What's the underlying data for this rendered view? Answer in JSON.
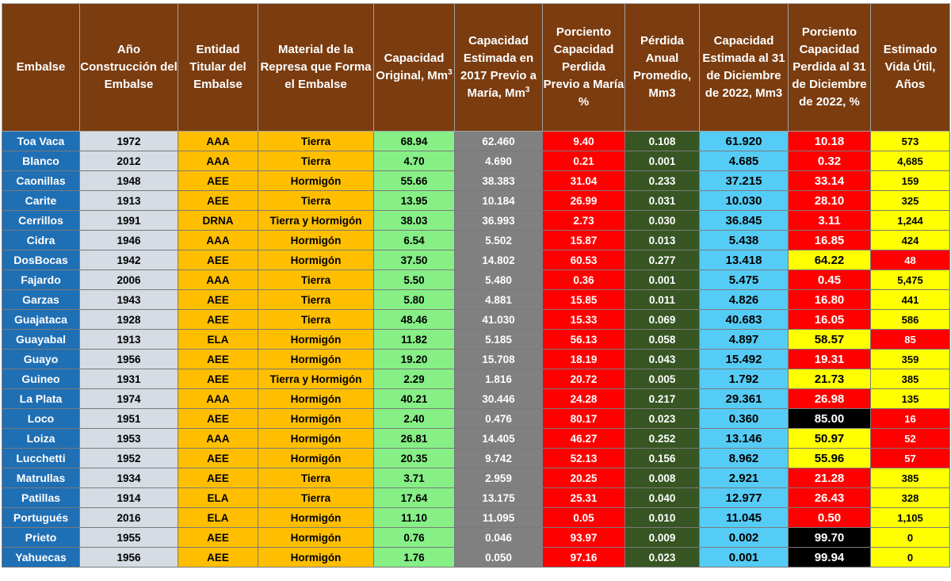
{
  "headers": {
    "embalse": "Embalse",
    "ano": "Año Construcción del Embalse",
    "entidad": "Entidad Titular del Embalse",
    "material": "Material de la Represa que Forma el Embalse",
    "cap_original": "Capacidad Original, Mm",
    "cap_estimada_2017": "Capacidad Estimada en 2017 Previo a María, Mm",
    "pct_perdida_maria": "Porciento Capacidad Perdida Previo a María %",
    "perdida_anual": "Pérdida Anual Promedio, Mm3",
    "cap_estimada_2022": "Capacidad Estimada al 31 de Diciembre de 2022, Mm3",
    "pct_perdida_2022": "Porciento Capacidad Perdida al 31 de Diciembre de 2022, %",
    "vida_util": "Estimado Vida Útil, Años",
    "superscript": "3"
  },
  "colors": {
    "header_bg": "#7b3c10",
    "embalse_bg": "#1f6fb5",
    "ano_bg": "#d6dce4",
    "entidad_bg": "#ffbf00",
    "material_bg": "#ffbf00",
    "cap_original_bg": "#86ef86",
    "cap_2017_bg": "#808080",
    "pct_maria_bg": "#ff0000",
    "perdida_bg": "#375623",
    "cap_2022_bg": "#55ccf5",
    "status_red": "#ff0000",
    "status_yellow": "#ffff00",
    "status_black": "#000000"
  },
  "rows": [
    {
      "embalse": "Toa Vaca",
      "ano": "1972",
      "entidad": "AAA",
      "material": "Tierra",
      "cap_original": "68.94",
      "cap_2017": "62.460",
      "pct_maria": "9.40",
      "perdida": "0.108",
      "cap_2022": "61.920",
      "pct_2022": "10.18",
      "pct_2022_color": "red",
      "vida": "573",
      "vida_color": "yellow"
    },
    {
      "embalse": "Blanco",
      "ano": "2012",
      "entidad": "AAA",
      "material": "Tierra",
      "cap_original": "4.70",
      "cap_2017": "4.690",
      "pct_maria": "0.21",
      "perdida": "0.001",
      "cap_2022": "4.685",
      "pct_2022": "0.32",
      "pct_2022_color": "red",
      "vida": "4,685",
      "vida_color": "yellow"
    },
    {
      "embalse": "Caonillas",
      "ano": "1948",
      "entidad": "AEE",
      "material": "Hormigón",
      "cap_original": "55.66",
      "cap_2017": "38.383",
      "pct_maria": "31.04",
      "perdida": "0.233",
      "cap_2022": "37.215",
      "pct_2022": "33.14",
      "pct_2022_color": "red",
      "vida": "159",
      "vida_color": "yellow"
    },
    {
      "embalse": "Carite",
      "ano": "1913",
      "entidad": "AEE",
      "material": "Tierra",
      "cap_original": "13.95",
      "cap_2017": "10.184",
      "pct_maria": "26.99",
      "perdida": "0.031",
      "cap_2022": "10.030",
      "pct_2022": "28.10",
      "pct_2022_color": "red",
      "vida": "325",
      "vida_color": "yellow"
    },
    {
      "embalse": "Cerrillos",
      "ano": "1991",
      "entidad": "DRNA",
      "material": "Tierra y Hormigón",
      "cap_original": "38.03",
      "cap_2017": "36.993",
      "pct_maria": "2.73",
      "perdida": "0.030",
      "cap_2022": "36.845",
      "pct_2022": "3.11",
      "pct_2022_color": "red",
      "vida": "1,244",
      "vida_color": "yellow"
    },
    {
      "embalse": "Cidra",
      "ano": "1946",
      "entidad": "AAA",
      "material": "Hormigón",
      "cap_original": "6.54",
      "cap_2017": "5.502",
      "pct_maria": "15.87",
      "perdida": "0.013",
      "cap_2022": "5.438",
      "pct_2022": "16.85",
      "pct_2022_color": "red",
      "vida": "424",
      "vida_color": "yellow"
    },
    {
      "embalse": "DosBocas",
      "ano": "1942",
      "entidad": "AEE",
      "material": "Hormigón",
      "cap_original": "37.50",
      "cap_2017": "14.802",
      "pct_maria": "60.53",
      "perdida": "0.277",
      "cap_2022": "13.418",
      "pct_2022": "64.22",
      "pct_2022_color": "yellow",
      "vida": "48",
      "vida_color": "red"
    },
    {
      "embalse": "Fajardo",
      "ano": "2006",
      "entidad": "AAA",
      "material": "Tierra",
      "cap_original": "5.50",
      "cap_2017": "5.480",
      "pct_maria": "0.36",
      "perdida": "0.001",
      "cap_2022": "5.475",
      "pct_2022": "0.45",
      "pct_2022_color": "red",
      "vida": "5,475",
      "vida_color": "yellow"
    },
    {
      "embalse": "Garzas",
      "ano": "1943",
      "entidad": "AEE",
      "material": "Tierra",
      "cap_original": "5.80",
      "cap_2017": "4.881",
      "pct_maria": "15.85",
      "perdida": "0.011",
      "cap_2022": "4.826",
      "pct_2022": "16.80",
      "pct_2022_color": "red",
      "vida": "441",
      "vida_color": "yellow"
    },
    {
      "embalse": "Guajataca",
      "ano": "1928",
      "entidad": "AEE",
      "material": "Tierra",
      "cap_original": "48.46",
      "cap_2017": "41.030",
      "pct_maria": "15.33",
      "perdida": "0.069",
      "cap_2022": "40.683",
      "pct_2022": "16.05",
      "pct_2022_color": "red",
      "vida": "586",
      "vida_color": "yellow"
    },
    {
      "embalse": "Guayabal",
      "ano": "1913",
      "entidad": "ELA",
      "material": "Hormigón",
      "cap_original": "11.82",
      "cap_2017": "5.185",
      "pct_maria": "56.13",
      "perdida": "0.058",
      "cap_2022": "4.897",
      "pct_2022": "58.57",
      "pct_2022_color": "yellow",
      "vida": "85",
      "vida_color": "red"
    },
    {
      "embalse": "Guayo",
      "ano": "1956",
      "entidad": "AEE",
      "material": "Hormigón",
      "cap_original": "19.20",
      "cap_2017": "15.708",
      "pct_maria": "18.19",
      "perdida": "0.043",
      "cap_2022": "15.492",
      "pct_2022": "19.31",
      "pct_2022_color": "red",
      "vida": "359",
      "vida_color": "yellow"
    },
    {
      "embalse": "Guineo",
      "ano": "1931",
      "entidad": "AEE",
      "material": "Tierra y Hormigón",
      "cap_original": "2.29",
      "cap_2017": "1.816",
      "pct_maria": "20.72",
      "perdida": "0.005",
      "cap_2022": "1.792",
      "pct_2022": "21.73",
      "pct_2022_color": "yellow",
      "vida": "385",
      "vida_color": "yellow"
    },
    {
      "embalse": "La Plata",
      "ano": "1974",
      "entidad": "AAA",
      "material": "Hormigón",
      "cap_original": "40.21",
      "cap_2017": "30.446",
      "pct_maria": "24.28",
      "perdida": "0.217",
      "cap_2022": "29.361",
      "pct_2022": "26.98",
      "pct_2022_color": "red",
      "vida": "135",
      "vida_color": "yellow"
    },
    {
      "embalse": "Loco",
      "ano": "1951",
      "entidad": "AEE",
      "material": "Hormigón",
      "cap_original": "2.40",
      "cap_2017": "0.476",
      "pct_maria": "80.17",
      "perdida": "0.023",
      "cap_2022": "0.360",
      "pct_2022": "85.00",
      "pct_2022_color": "black",
      "vida": "16",
      "vida_color": "red"
    },
    {
      "embalse": "Loiza",
      "ano": "1953",
      "entidad": "AAA",
      "material": "Hormigón",
      "cap_original": "26.81",
      "cap_2017": "14.405",
      "pct_maria": "46.27",
      "perdida": "0.252",
      "cap_2022": "13.146",
      "pct_2022": "50.97",
      "pct_2022_color": "yellow",
      "vida": "52",
      "vida_color": "red"
    },
    {
      "embalse": "Lucchetti",
      "ano": "1952",
      "entidad": "AEE",
      "material": "Hormigón",
      "cap_original": "20.35",
      "cap_2017": "9.742",
      "pct_maria": "52.13",
      "perdida": "0.156",
      "cap_2022": "8.962",
      "pct_2022": "55.96",
      "pct_2022_color": "yellow",
      "vida": "57",
      "vida_color": "red"
    },
    {
      "embalse": "Matrullas",
      "ano": "1934",
      "entidad": "AEE",
      "material": "Tierra",
      "cap_original": "3.71",
      "cap_2017": "2.959",
      "pct_maria": "20.25",
      "perdida": "0.008",
      "cap_2022": "2.921",
      "pct_2022": "21.28",
      "pct_2022_color": "red",
      "vida": "385",
      "vida_color": "yellow"
    },
    {
      "embalse": "Patillas",
      "ano": "1914",
      "entidad": "ELA",
      "material": "Tierra",
      "cap_original": "17.64",
      "cap_2017": "13.175",
      "pct_maria": "25.31",
      "perdida": "0.040",
      "cap_2022": "12.977",
      "pct_2022": "26.43",
      "pct_2022_color": "red",
      "vida": "328",
      "vida_color": "yellow"
    },
    {
      "embalse": "Portugués",
      "ano": "2016",
      "entidad": "ELA",
      "material": "Hormigón",
      "cap_original": "11.10",
      "cap_2017": "11.095",
      "pct_maria": "0.05",
      "perdida": "0.010",
      "cap_2022": "11.045",
      "pct_2022": "0.50",
      "pct_2022_color": "red",
      "vida": "1,105",
      "vida_color": "yellow"
    },
    {
      "embalse": "Prieto",
      "ano": "1955",
      "entidad": "AEE",
      "material": "Hormigón",
      "cap_original": "0.76",
      "cap_2017": "0.046",
      "pct_maria": "93.97",
      "perdida": "0.009",
      "cap_2022": "0.002",
      "pct_2022": "99.70",
      "pct_2022_color": "black",
      "vida": "0",
      "vida_color": "yellow"
    },
    {
      "embalse": "Yahuecas",
      "ano": "1956",
      "entidad": "AEE",
      "material": "Hormigón",
      "cap_original": "1.76",
      "cap_2017": "0.050",
      "pct_maria": "97.16",
      "perdida": "0.023",
      "cap_2022": "0.001",
      "pct_2022": "99.94",
      "pct_2022_color": "black",
      "vida": "0",
      "vida_color": "yellow"
    }
  ]
}
